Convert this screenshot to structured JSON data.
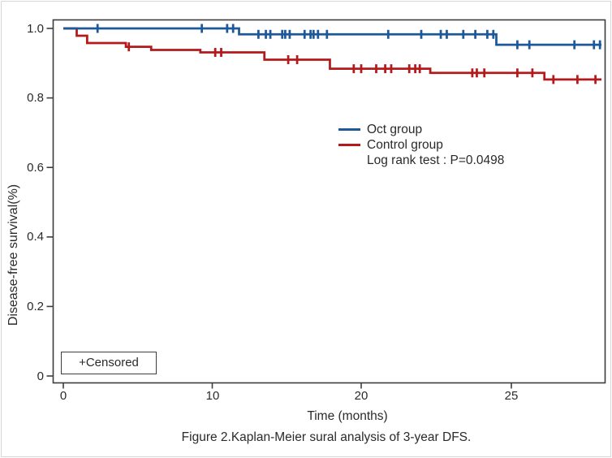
{
  "figure": {
    "caption": "Figure 2.Kaplan-Meier sural analysis of 3-year DFS."
  },
  "chart_data": {
    "type": "line",
    "subtype": "kaplan-meier-step",
    "title": "",
    "xlabel": "Time (months)",
    "ylabel": "Disease-free survival(%)",
    "ylim": [
      0,
      1.0
    ],
    "grid": false,
    "legend_position": "center-right-inside",
    "annotation": "Log rank test : P=0.0498",
    "censored_label": "+Censored",
    "xticks": {
      "labels": [
        "0",
        "10",
        "20",
        "25"
      ],
      "values": [
        0,
        10,
        20,
        25
      ],
      "note": "ticks are evenly spaced in the figure although labeled 0/10/20/25"
    },
    "yticks": {
      "labels": [
        "1.0",
        "0.8",
        "0.6",
        "0.4",
        "0.2",
        "0"
      ],
      "values": [
        1.0,
        0.8,
        0.6,
        0.4,
        0.2,
        0
      ]
    },
    "series": [
      {
        "name": "Oct group",
        "color": "#1d5899",
        "steps": [
          [
            0,
            1.0
          ],
          [
            11.8,
            0.983
          ],
          [
            24.5,
            0.953
          ]
        ],
        "end_time": 28.0,
        "censor_times": [
          2.3,
          9.3,
          11.0,
          11.4,
          13.1,
          13.6,
          13.9,
          14.7,
          14.9,
          15.2,
          16.2,
          16.6,
          16.8,
          17.1,
          17.7,
          20.9,
          22.0,
          22.65,
          22.85,
          23.4,
          23.8,
          24.2,
          24.4,
          25.2,
          25.6,
          27.1,
          27.75,
          27.95
        ]
      },
      {
        "name": "Control group",
        "color": "#b41a1b",
        "steps": [
          [
            0,
            1.0
          ],
          [
            0.9,
            0.979
          ],
          [
            1.6,
            0.958
          ],
          [
            4.2,
            0.947
          ],
          [
            5.9,
            0.938
          ],
          [
            9.2,
            0.931
          ],
          [
            13.5,
            0.91
          ],
          [
            17.9,
            0.884
          ],
          [
            22.3,
            0.872
          ],
          [
            26.1,
            0.853
          ]
        ],
        "end_time": 28.0,
        "censor_times": [
          4.4,
          10.2,
          10.6,
          15.1,
          15.7,
          19.5,
          20.0,
          20.5,
          20.8,
          21.0,
          21.6,
          21.8,
          21.95,
          23.7,
          23.85,
          24.1,
          25.2,
          25.7,
          26.4,
          27.2,
          27.8
        ]
      }
    ]
  }
}
